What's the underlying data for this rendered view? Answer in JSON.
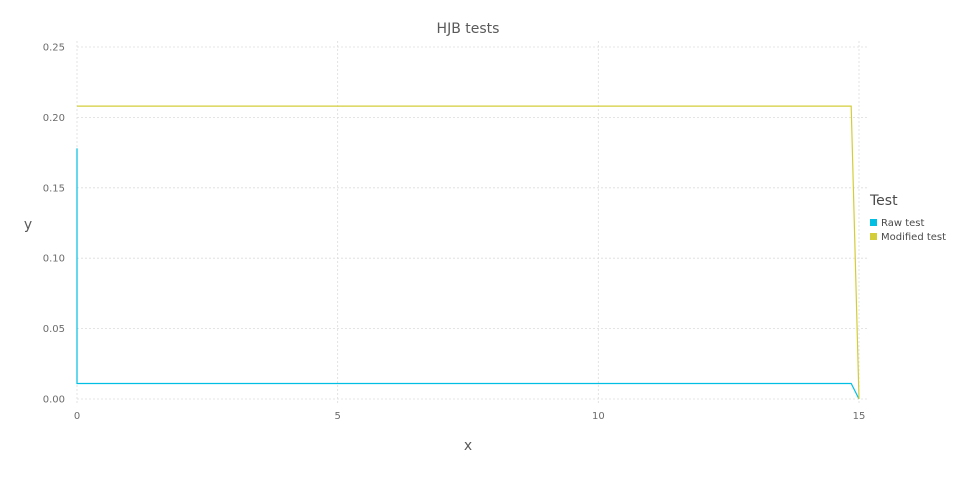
{
  "chart_data": {
    "type": "line",
    "title": "HJB tests",
    "xlabel": "x",
    "ylabel": "y",
    "xlim": [
      0,
      15
    ],
    "ylim": [
      0,
      0.25
    ],
    "x_ticks": [
      "0",
      "5",
      "10",
      "15"
    ],
    "y_ticks": [
      "0.00",
      "0.05",
      "0.10",
      "0.15",
      "0.20",
      "0.25"
    ],
    "grid": true,
    "legend": {
      "title": "Test",
      "placement": "right"
    },
    "series": [
      {
        "name": "Raw test",
        "color": "#00bfe3",
        "x": [
          0,
          0,
          14.85,
          15
        ],
        "y": [
          0.178,
          0.011,
          0.011,
          0.0
        ]
      },
      {
        "name": "Modified test",
        "color": "#d4cd3a",
        "x": [
          0,
          14.85,
          15
        ],
        "y": [
          0.208,
          0.208,
          0.0
        ]
      }
    ]
  }
}
